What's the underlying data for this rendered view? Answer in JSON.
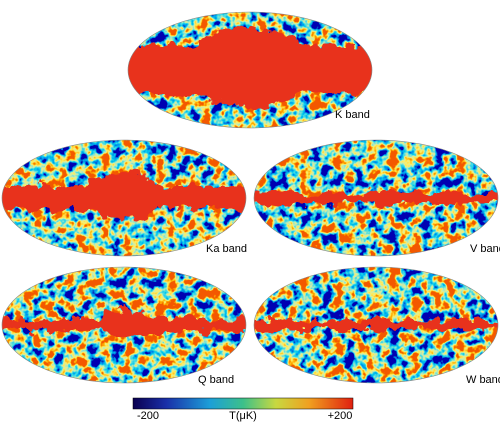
{
  "maps": [
    {
      "label": "K band"
    },
    {
      "label": "Ka band"
    },
    {
      "label": "V band"
    },
    {
      "label": "Q band"
    },
    {
      "label": "W band"
    }
  ],
  "colorbar": {
    "min_label": "-200",
    "title": "T(μK)",
    "max_label": "+200"
  }
}
